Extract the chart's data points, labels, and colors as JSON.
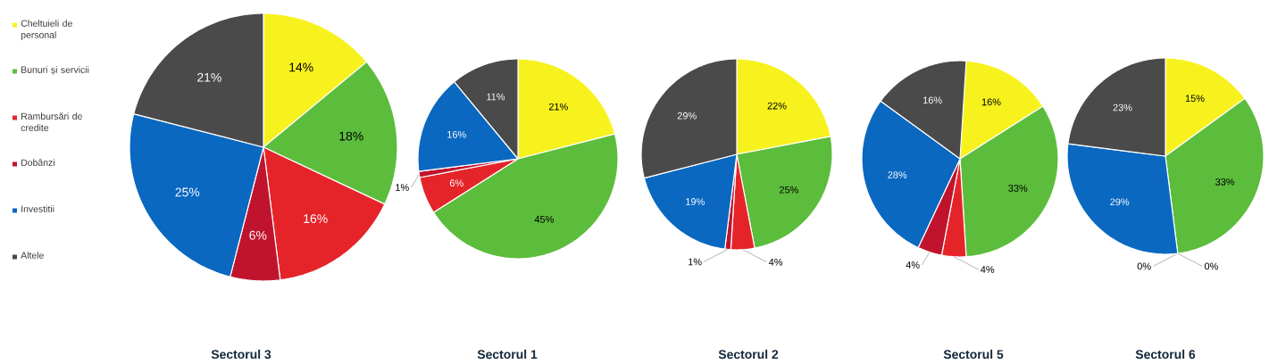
{
  "chart_data": [
    {
      "type": "pie",
      "title": "Sectorul 3",
      "legend": "left",
      "categories": [
        "Cheltuieli de personal",
        "Bunuri și servicii",
        "Rambursări de credite",
        "Dobânzi",
        "Investitii",
        "Altele"
      ],
      "values": [
        14,
        18,
        16,
        6,
        25,
        21
      ],
      "value_labels": [
        "14%",
        "18%",
        "16%",
        "6%",
        "25%",
        "21%"
      ],
      "colors": [
        "#f7f21e",
        "#5cbd3c",
        "#e5242a",
        "#c0142e",
        "#0a68c0",
        "#4a4a4a"
      ]
    },
    {
      "type": "pie",
      "title": "Sectorul 1",
      "categories": [
        null,
        null,
        null,
        null,
        null,
        null
      ],
      "values": [
        21,
        45,
        6,
        1,
        16,
        11
      ],
      "value_labels": [
        "21%",
        "45%",
        "6%",
        "1%",
        "16%",
        "11%"
      ],
      "colors": [
        "#f7f21e",
        "#5cbd3c",
        "#e5242a",
        "#c0142e",
        "#0a68c0",
        "#4a4a4a"
      ]
    },
    {
      "type": "pie",
      "title": "Sectorul 2",
      "categories": [
        null,
        null,
        null,
        null,
        null,
        null
      ],
      "values": [
        22,
        25,
        4,
        1,
        19,
        29
      ],
      "value_labels": [
        "22%",
        "25%",
        "4%",
        "1%",
        "19%",
        "29%"
      ],
      "colors": [
        "#f7f21e",
        "#5cbd3c",
        "#e5242a",
        "#c0142e",
        "#0a68c0",
        "#4a4a4a"
      ]
    },
    {
      "type": "pie",
      "title": "Sectorul 5",
      "categories": [
        null,
        null,
        null,
        null,
        null,
        null
      ],
      "values": [
        16,
        33,
        4,
        4,
        28,
        16
      ],
      "value_labels": [
        "16%",
        "33%",
        "4%",
        "4%",
        "28%",
        "16%"
      ],
      "colors": [
        "#f7f21e",
        "#5cbd3c",
        "#e5242a",
        "#c0142e",
        "#0a68c0",
        "#4a4a4a"
      ]
    },
    {
      "type": "pie",
      "title": "Sectorul 6",
      "categories": [
        null,
        null,
        null,
        null,
        null,
        null
      ],
      "values": [
        15,
        33,
        0,
        0,
        29,
        23
      ],
      "value_labels": [
        "15%",
        "33%",
        "0%",
        "0%",
        "29%",
        "23%"
      ],
      "colors": [
        "#f7f21e",
        "#5cbd3c",
        "#e5242a",
        "#c0142e",
        "#0a68c0",
        "#4a4a4a"
      ]
    }
  ]
}
